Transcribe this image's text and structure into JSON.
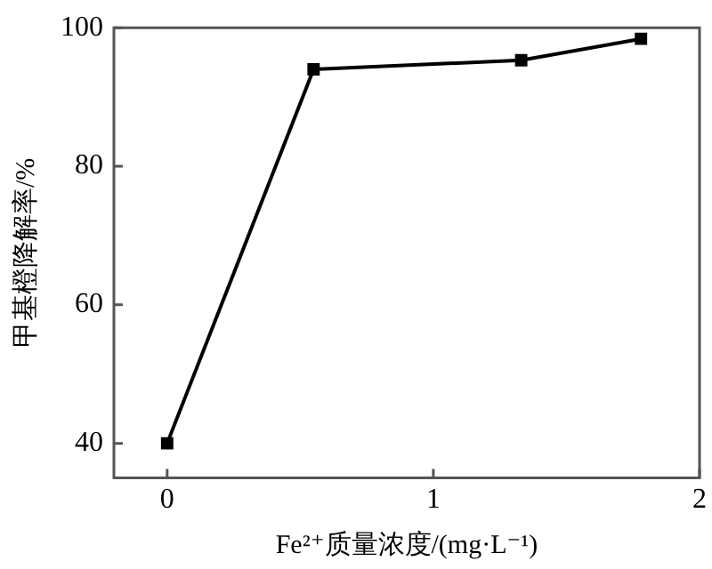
{
  "chart_data": {
    "type": "line",
    "xlabel": "Fe²⁺质量浓度/(mg·L⁻¹)",
    "ylabel": "甲基橙降解率/%",
    "x": [
      0,
      0.55,
      1.33,
      1.78
    ],
    "series": [
      {
        "color": "#000000",
        "values": [
          40,
          94,
          95.3,
          98.4
        ]
      }
    ],
    "xlim": [
      -0.2,
      2
    ],
    "xticks": [
      0,
      1,
      2
    ],
    "ylim": [
      35,
      100
    ],
    "yticks": [
      40,
      60,
      80,
      100
    ],
    "marker": "square",
    "line_style": "solid",
    "grid": false,
    "legend": false
  }
}
